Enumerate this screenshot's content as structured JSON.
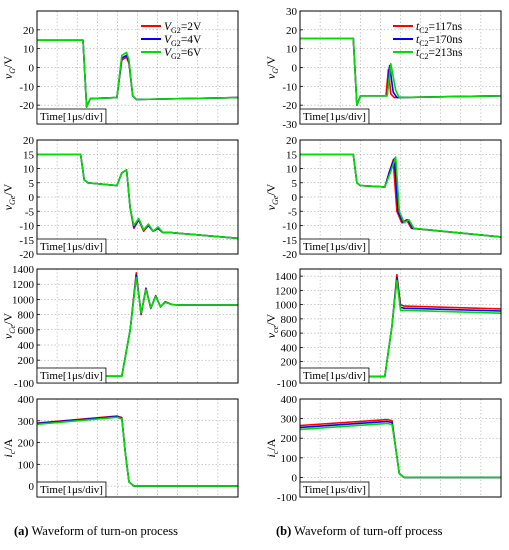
{
  "captions": [
    {
      "letter": "(a)",
      "text": " Waveform of turn-on process"
    },
    {
      "letter": "(b)",
      "text": " Waveform of turn-off process"
    }
  ],
  "colors": {
    "series": [
      "#ff0000",
      "#0000ff",
      "#00dd00"
    ],
    "axis": "#000000",
    "grid": "#9a9a9a"
  },
  "legends": {
    "left": [
      {
        "sym": "V",
        "sub": "G2",
        "val": "=2V"
      },
      {
        "sym": "V",
        "sub": "G2",
        "val": "=4V"
      },
      {
        "sym": "V",
        "sub": "G2",
        "val": "=6V"
      }
    ],
    "right": [
      {
        "sym": "t",
        "sub": "C2",
        "val": "=117ns"
      },
      {
        "sym": "t",
        "sub": "C2",
        "val": "=170ns"
      },
      {
        "sym": "t",
        "sub": "C2",
        "val": "=213ns"
      }
    ]
  },
  "chart_data": [
    {
      "id": "a1",
      "type": "line",
      "xlabel": "Time[1μs/div]",
      "ylabel": {
        "sym": "v",
        "sub": "G",
        "unit": "/V"
      },
      "ylim": [
        -30,
        30
      ],
      "yticks": [
        -20,
        -10,
        0,
        10,
        20
      ],
      "grid": true,
      "legend": "left",
      "series": [
        {
          "x": [
            0,
            1.9,
            2.05,
            2.2,
            3.3,
            3.5,
            3.7,
            3.8,
            3.95,
            4.1,
            8.3
          ],
          "y": [
            14.5,
            14.5,
            -21,
            -16.5,
            -16,
            4,
            5.5,
            2,
            -15,
            -17,
            -16
          ]
        },
        {
          "x": [
            0,
            1.9,
            2.05,
            2.2,
            3.3,
            3.5,
            3.7,
            3.8,
            3.95,
            4.1,
            8.3
          ],
          "y": [
            14.5,
            14.5,
            -21,
            -16.5,
            -16,
            5,
            6.5,
            3,
            -15,
            -17,
            -16
          ]
        },
        {
          "x": [
            0,
            1.9,
            2.05,
            2.2,
            3.3,
            3.5,
            3.7,
            3.8,
            3.95,
            4.1,
            8.3
          ],
          "y": [
            14.5,
            14.5,
            -21,
            -16.5,
            -16,
            6.5,
            8,
            4,
            -15,
            -17,
            -16
          ]
        }
      ]
    },
    {
      "id": "a2",
      "type": "line",
      "xlabel": "Time[1μs/div]",
      "ylabel": {
        "sym": "v",
        "sub": "Ge",
        "unit": "/V"
      },
      "ylim": [
        -20,
        20
      ],
      "yticks": [
        -20,
        -15,
        -10,
        -5,
        0,
        5,
        10,
        15,
        20
      ],
      "grid": true,
      "series": [
        {
          "x": [
            0,
            1.8,
            1.95,
            2.1,
            3.3,
            3.5,
            3.7,
            3.85,
            4.0,
            4.2,
            4.4,
            4.6,
            4.8,
            5.0,
            5.2,
            5.5,
            8.3
          ],
          "y": [
            15,
            15,
            6,
            5,
            4,
            8.5,
            9.5,
            -4,
            -11,
            -8,
            -12,
            -10,
            -12,
            -11,
            -12.5,
            -12.5,
            -14.5
          ]
        },
        {
          "x": [
            0,
            1.8,
            1.95,
            2.1,
            3.3,
            3.5,
            3.7,
            3.85,
            4.0,
            4.2,
            4.4,
            4.6,
            4.8,
            5.0,
            5.2,
            5.5,
            8.3
          ],
          "y": [
            15,
            15,
            6,
            5,
            4,
            8.5,
            9.5,
            -4,
            -10.5,
            -8,
            -11.5,
            -10,
            -12,
            -11,
            -12.5,
            -12.5,
            -14.5
          ]
        },
        {
          "x": [
            0,
            1.8,
            1.95,
            2.1,
            3.3,
            3.5,
            3.7,
            3.85,
            4.0,
            4.2,
            4.4,
            4.6,
            4.8,
            5.0,
            5.2,
            5.5,
            8.3
          ],
          "y": [
            15,
            15,
            6,
            5,
            4,
            8.5,
            9.5,
            -4,
            -10,
            -7.5,
            -11.5,
            -9.5,
            -12,
            -10.5,
            -12.5,
            -12.5,
            -14.5
          ]
        }
      ]
    },
    {
      "id": "a3",
      "type": "line",
      "xlabel": "Time[1μs/div]",
      "ylabel": {
        "sym": "v",
        "sub": "Ce",
        "unit": "/V"
      },
      "ylim": [
        -100,
        1400
      ],
      "yticks": [
        -100,
        200,
        400,
        600,
        800,
        1000,
        1200,
        1400
      ],
      "grid": true,
      "series": [
        {
          "x": [
            0,
            3.5,
            3.85,
            4.1,
            4.3,
            4.5,
            4.7,
            4.9,
            5.1,
            5.3,
            5.6,
            6.0,
            8.3
          ],
          "y": [
            -10,
            -10,
            600,
            1350,
            800,
            1150,
            880,
            1050,
            900,
            970,
            930,
            925,
            925
          ]
        },
        {
          "x": [
            0,
            3.5,
            3.85,
            4.1,
            4.3,
            4.5,
            4.7,
            4.9,
            5.1,
            5.3,
            5.6,
            6.0,
            8.3
          ],
          "y": [
            -10,
            -10,
            600,
            1320,
            810,
            1140,
            885,
            1045,
            905,
            965,
            930,
            925,
            925
          ]
        },
        {
          "x": [
            0,
            3.5,
            3.85,
            4.1,
            4.3,
            4.5,
            4.7,
            4.9,
            5.1,
            5.3,
            5.6,
            6.0,
            8.3
          ],
          "y": [
            -10,
            -10,
            600,
            1290,
            820,
            1130,
            890,
            1040,
            905,
            960,
            930,
            925,
            925
          ]
        }
      ]
    },
    {
      "id": "a4",
      "type": "line",
      "xlabel": "Time[1μs/div]",
      "ylabel": {
        "sym": "i",
        "sub": "c",
        "unit": "/A"
      },
      "ylim": [
        -50,
        400
      ],
      "yticks": [
        0,
        100,
        200,
        300,
        400
      ],
      "grid": true,
      "series": [
        {
          "x": [
            0,
            3.3,
            3.5,
            3.65,
            3.8,
            4.0,
            8.3
          ],
          "y": [
            290,
            322,
            315,
            150,
            20,
            0,
            0
          ]
        },
        {
          "x": [
            0,
            3.3,
            3.5,
            3.65,
            3.8,
            4.0,
            8.3
          ],
          "y": [
            287,
            319,
            312,
            150,
            20,
            0,
            0
          ]
        },
        {
          "x": [
            0,
            3.3,
            3.5,
            3.65,
            3.8,
            4.0,
            8.3
          ],
          "y": [
            284,
            316,
            309,
            150,
            20,
            0,
            0
          ]
        }
      ]
    },
    {
      "id": "b1",
      "type": "line",
      "xlabel": "Time[1μs/div]",
      "ylabel": {
        "sym": "v",
        "sub": "G",
        "unit": "/V"
      },
      "ylim": [
        -30,
        30
      ],
      "yticks": [
        -30,
        -20,
        -10,
        0,
        10,
        20,
        30
      ],
      "grid": true,
      "legend": "right",
      "series": [
        {
          "x": [
            0,
            2.2,
            2.35,
            2.5,
            3.55,
            3.65,
            3.75,
            3.9,
            8.3
          ],
          "y": [
            15.5,
            15.5,
            -20,
            -15,
            -15,
            -1,
            -14,
            -16,
            -15
          ]
        },
        {
          "x": [
            0,
            2.2,
            2.35,
            2.5,
            3.6,
            3.7,
            3.85,
            4.0,
            8.3
          ],
          "y": [
            15.5,
            15.5,
            -20,
            -15,
            -15,
            1,
            -13,
            -16,
            -15
          ]
        },
        {
          "x": [
            0,
            2.2,
            2.35,
            2.5,
            3.6,
            3.75,
            3.95,
            4.1,
            8.3
          ],
          "y": [
            15.5,
            15.5,
            -20,
            -15,
            -15,
            2,
            -12,
            -16,
            -15
          ]
        }
      ]
    },
    {
      "id": "b2",
      "type": "line",
      "xlabel": "Time[1μs/div]",
      "ylabel": {
        "sym": "v",
        "sub": "Ge",
        "unit": "/V"
      },
      "ylim": [
        -20,
        20
      ],
      "yticks": [
        -20,
        -15,
        -10,
        -5,
        0,
        5,
        10,
        15,
        20
      ],
      "grid": true,
      "series": [
        {
          "x": [
            0,
            2.2,
            2.35,
            2.5,
            3.5,
            3.7,
            3.85,
            4.0,
            4.2,
            4.4,
            4.6,
            8.3
          ],
          "y": [
            15,
            15,
            5,
            4,
            3.5,
            9,
            13,
            -5,
            -9,
            -8,
            -11,
            -14
          ]
        },
        {
          "x": [
            0,
            2.2,
            2.35,
            2.5,
            3.5,
            3.7,
            3.9,
            4.05,
            4.25,
            4.45,
            4.65,
            8.3
          ],
          "y": [
            15,
            15,
            5,
            4,
            3.5,
            9,
            13.5,
            -5,
            -9,
            -8,
            -11,
            -14
          ]
        },
        {
          "x": [
            0,
            2.2,
            2.35,
            2.5,
            3.5,
            3.75,
            3.95,
            4.1,
            4.3,
            4.5,
            4.7,
            8.3
          ],
          "y": [
            15,
            15,
            5,
            4,
            3.5,
            9,
            14,
            -5,
            -9,
            -8,
            -11,
            -14
          ]
        }
      ]
    },
    {
      "id": "b3",
      "type": "line",
      "xlabel": "Time[1μs/div]",
      "ylabel": {
        "sym": "v",
        "sub": "ce",
        "unit": "/V"
      },
      "ylim": [
        -100,
        1500
      ],
      "yticks": [
        -100,
        200,
        400,
        600,
        800,
        1000,
        1200,
        1400
      ],
      "grid": true,
      "series": [
        {
          "x": [
            0,
            3.5,
            3.8,
            4.0,
            4.15,
            4.3,
            8.3
          ],
          "y": [
            -10,
            -10,
            700,
            1420,
            1000,
            980,
            940
          ]
        },
        {
          "x": [
            0,
            3.5,
            3.8,
            4.0,
            4.15,
            4.3,
            8.3
          ],
          "y": [
            -10,
            -10,
            700,
            1380,
            960,
            950,
            910
          ]
        },
        {
          "x": [
            0,
            3.5,
            3.8,
            4.0,
            4.15,
            4.3,
            8.3
          ],
          "y": [
            -10,
            -10,
            700,
            1340,
            920,
            920,
            880
          ]
        }
      ]
    },
    {
      "id": "b4",
      "type": "line",
      "xlabel": "Time[1μs/div]",
      "ylabel": {
        "sym": "i",
        "sub": "c",
        "unit": "/A"
      },
      "ylim": [
        -100,
        400
      ],
      "yticks": [
        -100,
        0,
        100,
        200,
        300,
        400
      ],
      "grid": true,
      "series": [
        {
          "x": [
            0,
            3.6,
            3.8,
            3.95,
            4.1,
            4.3,
            8.3
          ],
          "y": [
            265,
            295,
            290,
            150,
            20,
            0,
            0
          ]
        },
        {
          "x": [
            0,
            3.6,
            3.8,
            3.95,
            4.1,
            4.3,
            8.3
          ],
          "y": [
            255,
            285,
            280,
            150,
            20,
            0,
            0
          ]
        },
        {
          "x": [
            0,
            3.6,
            3.8,
            3.95,
            4.1,
            4.3,
            8.3
          ],
          "y": [
            245,
            275,
            270,
            150,
            20,
            0,
            0
          ]
        }
      ]
    }
  ]
}
